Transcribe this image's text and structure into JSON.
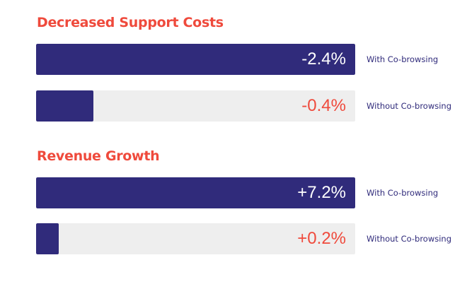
{
  "colors": {
    "title": "#ef4a3c",
    "bar_fill": "#302b7b",
    "track": "#eeeeee",
    "value_on_fill": "#ffffff",
    "value_on_track": "#ef4a3c",
    "series_label": "#302b7b"
  },
  "chart_data": {
    "type": "bar",
    "orientation": "horizontal",
    "groups": [
      {
        "title": "Decreased Support Costs",
        "bars": [
          {
            "series": "With Co-browsing",
            "label": "-2.4%",
            "value": -2.4,
            "fill_fraction": 1.0
          },
          {
            "series": "Without Co-browsing",
            "label": "-0.4%",
            "value": -0.4,
            "fill_fraction": 0.18
          }
        ]
      },
      {
        "title": "Revenue Growth",
        "bars": [
          {
            "series": "With Co-browsing",
            "label": "+7.2%",
            "value": 7.2,
            "fill_fraction": 1.0
          },
          {
            "series": "Without Co-browsing",
            "label": "+0.2%",
            "value": 0.2,
            "fill_fraction": 0.07
          }
        ]
      }
    ]
  }
}
